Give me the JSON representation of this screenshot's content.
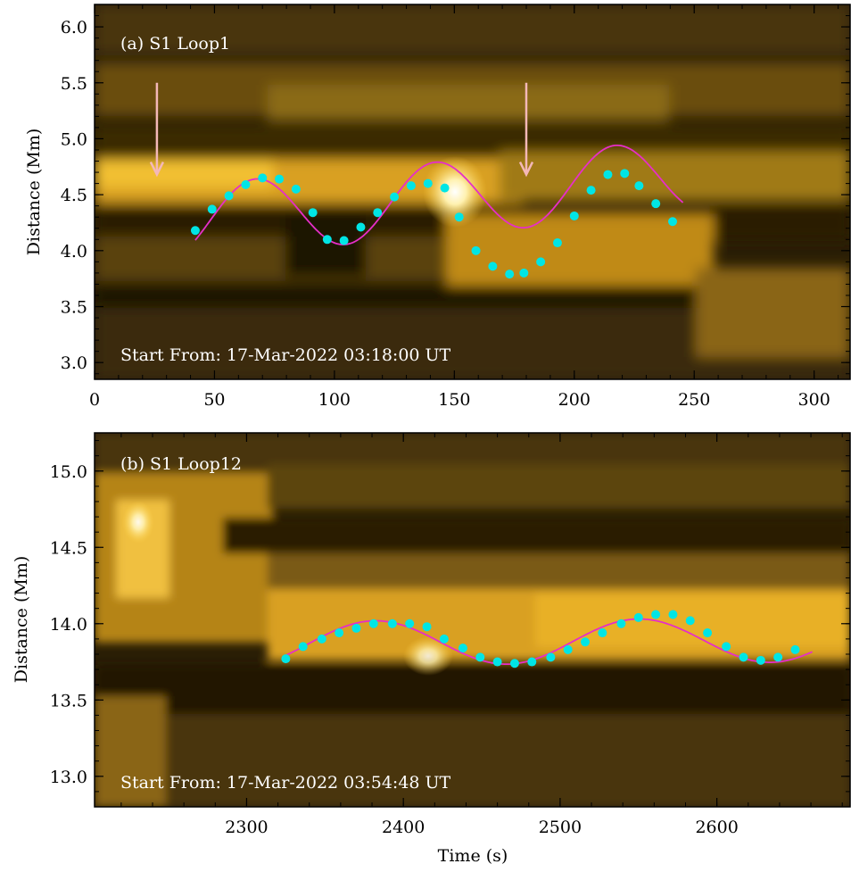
{
  "chart_data": [
    {
      "type": "scatter",
      "panel_label": "(a) S1 Loop1",
      "start_text": "Start From: 17-Mar-2022 03:18:00 UT",
      "xlabel": "",
      "ylabel": "Distance (Mm)",
      "xlim": [
        0,
        315
      ],
      "ylim": [
        2.85,
        6.2
      ],
      "xticks": [
        0,
        50,
        100,
        150,
        200,
        250,
        300
      ],
      "yticks": [
        3.0,
        3.5,
        4.0,
        4.5,
        5.0,
        5.5,
        6.0
      ],
      "ytick_labels": [
        "3.0",
        "3.5",
        "4.0",
        "4.5",
        "5.0",
        "5.5",
        "6.0"
      ],
      "background": "time-distance map (yellow-black colormap)",
      "colors": {
        "points": "#00e5e5",
        "fit": "#e62ec8",
        "arrows": "#f4b8b8",
        "dark": "#0f0a00",
        "bright": "#ffe070"
      },
      "series": [
        {
          "kind": "points",
          "x": [
            42,
            49,
            56,
            63,
            70,
            77,
            84,
            91,
            97,
            104,
            111,
            118,
            125,
            132,
            139,
            146,
            152,
            159,
            166,
            173,
            179,
            186,
            193,
            200,
            207,
            214,
            221,
            227,
            234,
            241
          ],
          "y": [
            4.18,
            4.37,
            4.49,
            4.59,
            4.65,
            4.64,
            4.55,
            4.34,
            4.1,
            4.09,
            4.21,
            4.34,
            4.48,
            4.58,
            4.6,
            4.56,
            4.3,
            4.0,
            3.86,
            3.79,
            3.8,
            3.9,
            4.07,
            4.31,
            4.54,
            4.68,
            4.69,
            4.58,
            4.42,
            4.26
          ]
        },
        {
          "kind": "fit",
          "model": "sine",
          "x_range": [
            42,
            246
          ],
          "params": {
            "a0": 4.26,
            "a1": 0.002,
            "amp": 0.33,
            "period": 75,
            "phase_x": 48.3
          }
        }
      ],
      "annotations": [
        {
          "kind": "arrow",
          "x": 26,
          "y_from": 5.5,
          "y_to": 4.68
        },
        {
          "kind": "arrow",
          "x": 180,
          "y_from": 5.5,
          "y_to": 4.68
        }
      ]
    },
    {
      "type": "scatter",
      "panel_label": "(b) S1 Loop12",
      "start_text": "Start From: 17-Mar-2022 03:54:48 UT",
      "xlabel": "Time (s)",
      "ylabel": "Distance (Mm)",
      "xlim": [
        2203,
        2685
      ],
      "ylim": [
        12.8,
        15.25
      ],
      "xticks": [
        2300,
        2400,
        2500,
        2600
      ],
      "yticks": [
        13.0,
        13.5,
        14.0,
        14.5,
        15.0
      ],
      "ytick_labels": [
        "13.0",
        "13.5",
        "14.0",
        "14.5",
        "15.0"
      ],
      "background": "time-distance map (yellow-black colormap)",
      "colors": {
        "points": "#00e5e5",
        "fit": "#e62ec8",
        "dark": "#0f0a00",
        "bright": "#ffe070"
      },
      "series": [
        {
          "kind": "points",
          "x": [
            2325,
            2336,
            2348,
            2359,
            2370,
            2381,
            2393,
            2404,
            2415,
            2426,
            2438,
            2449,
            2460,
            2471,
            2482,
            2494,
            2505,
            2516,
            2527,
            2539,
            2550,
            2561,
            2572,
            2583,
            2594,
            2606,
            2617,
            2628,
            2639,
            2650
          ],
          "y": [
            13.77,
            13.85,
            13.9,
            13.94,
            13.97,
            14.0,
            14.0,
            14.0,
            13.98,
            13.9,
            13.84,
            13.78,
            13.75,
            13.74,
            13.75,
            13.78,
            13.83,
            13.88,
            13.94,
            14.0,
            14.04,
            14.06,
            14.06,
            14.02,
            13.94,
            13.85,
            13.78,
            13.76,
            13.78,
            13.83
          ]
        },
        {
          "kind": "fit",
          "model": "sine",
          "x_range": [
            2325,
            2662
          ],
          "params": {
            "a0": 13.87,
            "a1": 7e-05,
            "amp": 0.145,
            "period": 168,
            "phase_x": 2340
          }
        }
      ],
      "annotations": []
    }
  ]
}
